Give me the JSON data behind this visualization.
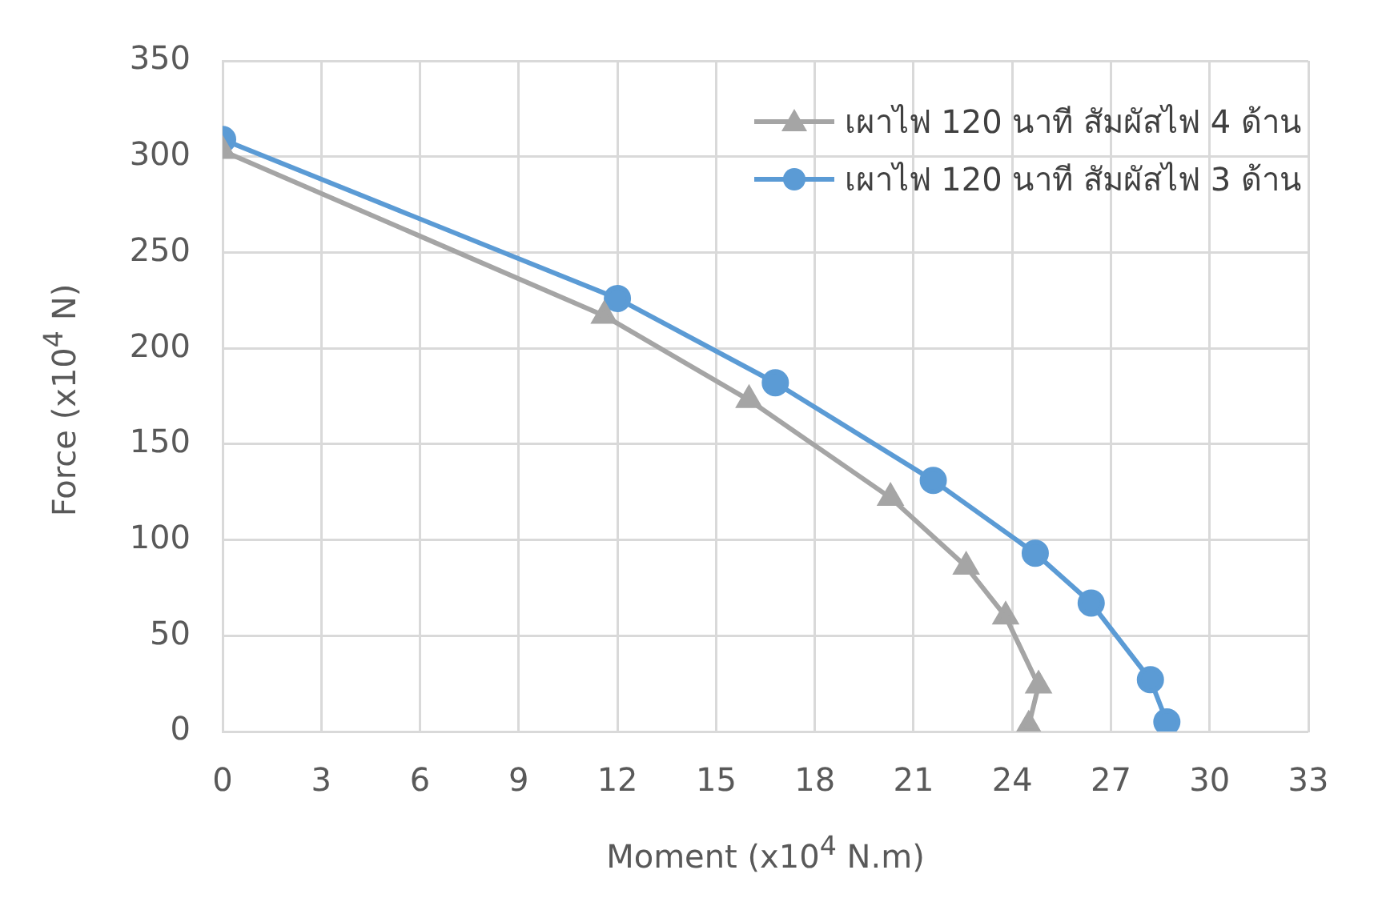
{
  "chart_data": {
    "type": "line",
    "xlabel": "Moment (x10$^{4}$ N.m)",
    "ylabel": "Force (x10$^{4}$ N)",
    "xlim": [
      0,
      33
    ],
    "xticks": [
      0,
      3,
      6,
      9,
      12,
      15,
      18,
      21,
      24,
      27,
      30,
      33
    ],
    "ylim": [
      0,
      350
    ],
    "yticks": [
      0,
      50,
      100,
      150,
      200,
      250,
      300,
      350
    ],
    "grid": true,
    "legend": "top right",
    "series": [
      {
        "name": "เผาไฟ 120 นาที สัมผัสไฟ 4 ด้าน",
        "color": "#a5a5a5",
        "marker": "triangle",
        "x": [
          0,
          11.6,
          16,
          20.3,
          22.6,
          23.8,
          24.8,
          24.5
        ],
        "values": [
          303,
          217,
          173,
          122,
          86,
          60,
          24,
          3
        ]
      },
      {
        "name": "เผาไฟ 120 นาที สัมผัสไฟ 3 ด้าน",
        "color": "#5b9bd5",
        "marker": "circle",
        "x": [
          0,
          12,
          16.8,
          21.6,
          24.7,
          26.4,
          28.2,
          28.7
        ],
        "values": [
          309,
          226,
          182,
          131,
          93,
          67,
          27,
          5
        ]
      }
    ]
  }
}
